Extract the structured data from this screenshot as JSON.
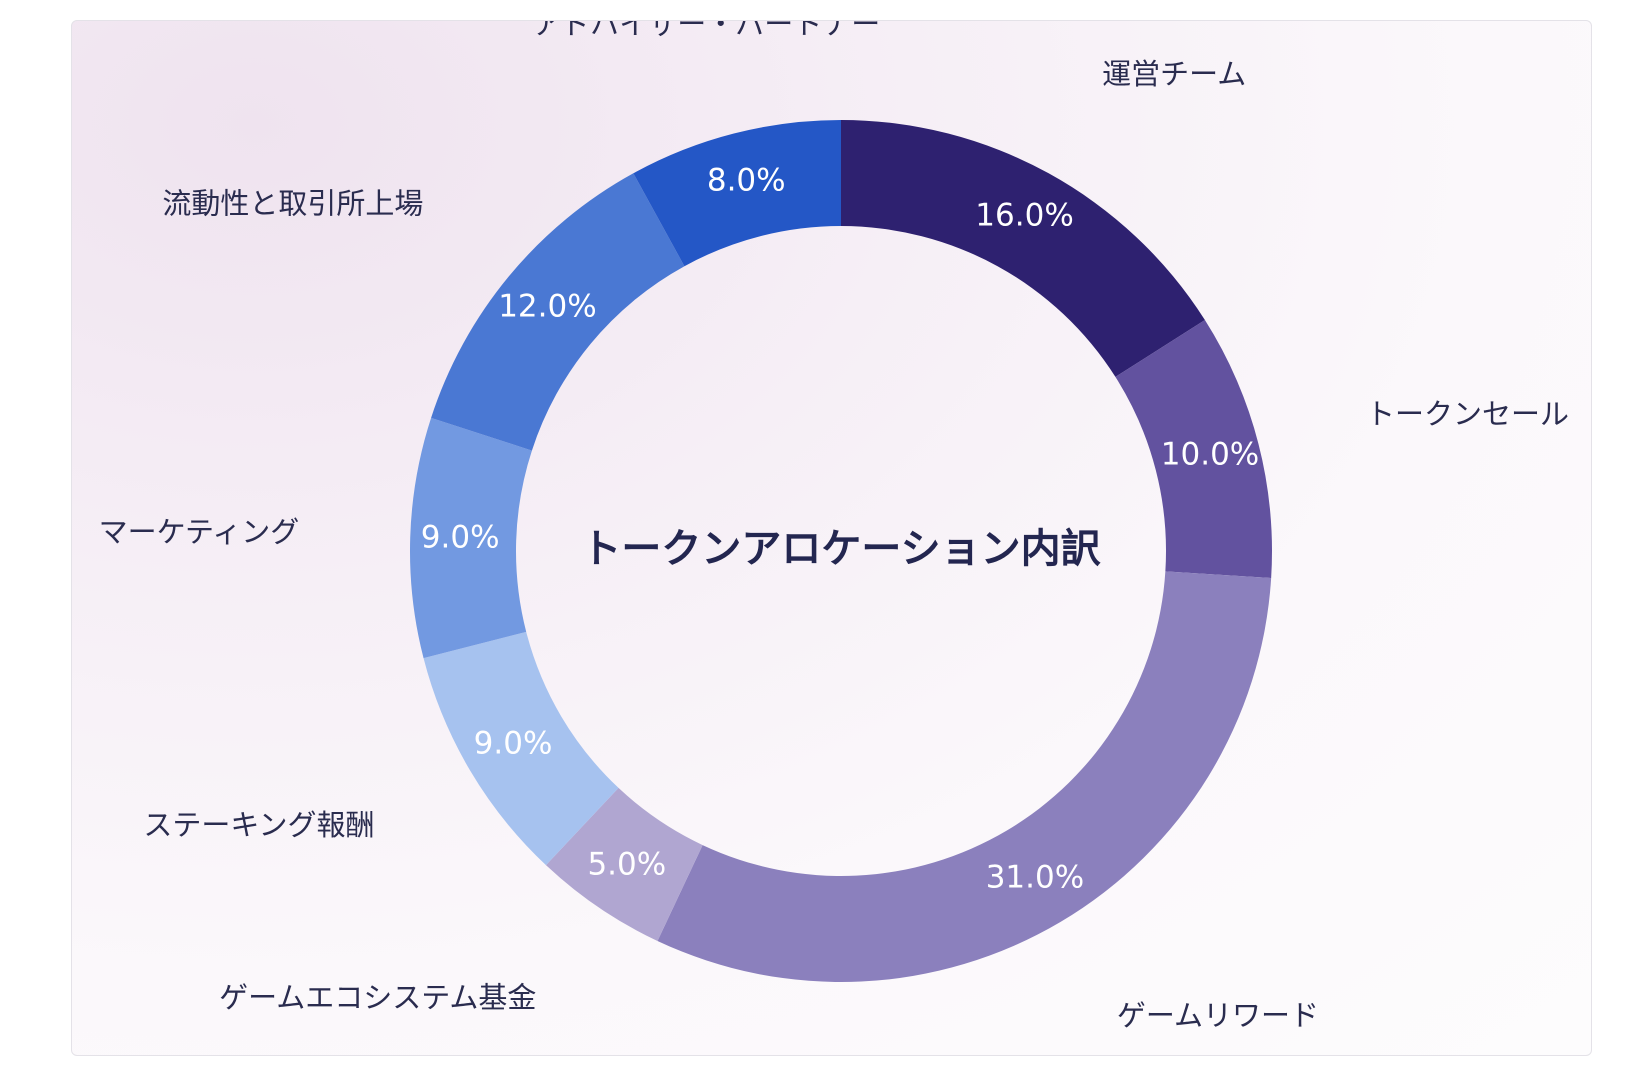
{
  "chart_data": {
    "type": "pie",
    "title": "トークンアロケーション内訳",
    "categories": [
      "運営チーム",
      "トークンセール",
      "ゲームリワード",
      "ゲームエコシステム基金",
      "ステーキング報酬",
      "マーケティング",
      "流動性と取引所上場",
      "アドバイザー・パートナー"
    ],
    "values": [
      16.0,
      10.0,
      31.0,
      5.0,
      9.0,
      9.0,
      12.0,
      8.0
    ],
    "value_labels": [
      "16.0%",
      "10.0%",
      "31.0%",
      "5.0%",
      "9.0%",
      "9.0%",
      "12.0%",
      "8.0%"
    ],
    "colors": [
      "#2e2170",
      "#62529f",
      "#8b80bd",
      "#b0a6d1",
      "#a6c2ef",
      "#7299e1",
      "#4a78d3",
      "#2457c6"
    ],
    "donut": true,
    "legend": "none"
  }
}
